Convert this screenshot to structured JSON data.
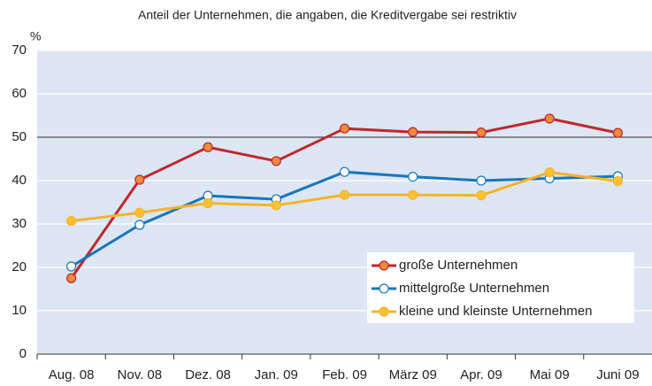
{
  "chart_data": {
    "type": "line",
    "title": "Anteil der Unternehmen, die angaben, die Kreditvergabe sei restriktiv",
    "y_unit": "%",
    "categories": [
      "Aug. 08",
      "Nov. 08",
      "Dez. 08",
      "Jan. 09",
      "Feb. 09",
      "März 09",
      "Apr. 09",
      "Mai 09",
      "Juni 09"
    ],
    "series": [
      {
        "name": "große Unternehmen",
        "color": "#c0272d",
        "marker_fill": "#f08a3c",
        "values": [
          17.5,
          40.2,
          47.7,
          44.5,
          52,
          51.2,
          51.1,
          54.3,
          51
        ]
      },
      {
        "name": "mittelgroße Unternehmen",
        "color": "#1a75bc",
        "marker_fill": "#ffffff",
        "values": [
          20.2,
          29.8,
          36.5,
          35.7,
          42,
          40.9,
          40,
          40.5,
          41
        ]
      },
      {
        "name": "kleine und kleinste Unternehmen",
        "color": "#f7b329",
        "marker_fill": "#f9c233",
        "values": [
          30.7,
          32.6,
          34.8,
          34.3,
          36.7,
          36.7,
          36.6,
          41.9,
          39.9
        ]
      }
    ],
    "ylim": [
      0,
      70
    ],
    "yticks": [
      0,
      10,
      20,
      30,
      40,
      50,
      60,
      70
    ],
    "reference_line": 50,
    "grid": true,
    "background": "#dce6f4",
    "legend": "lower right"
  }
}
